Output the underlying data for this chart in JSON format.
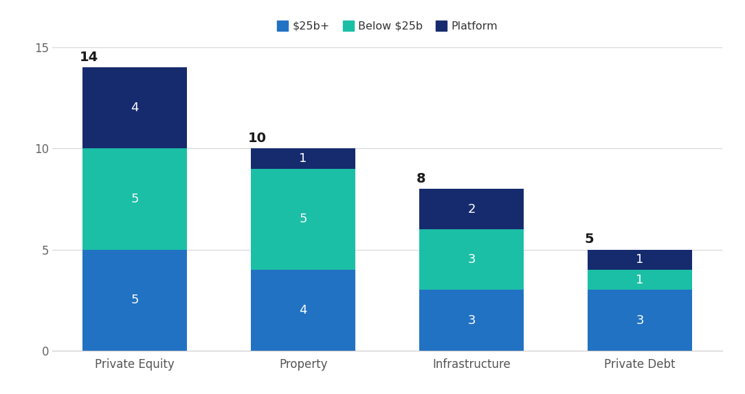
{
  "categories": [
    "Private Equity",
    "Property",
    "Infrastructure",
    "Private Debt"
  ],
  "series": {
    "$25b+": [
      5,
      4,
      3,
      3
    ],
    "Below $25b": [
      5,
      5,
      3,
      1
    ],
    "Platform": [
      4,
      1,
      2,
      1
    ]
  },
  "totals": [
    14,
    10,
    8,
    5
  ],
  "colors": {
    "$25b+": "#2272C3",
    "Below $25b": "#1BBFA6",
    "Platform": "#162B6E"
  },
  "legend_labels": [
    "$25b+",
    "Below $25b",
    "Platform"
  ],
  "ylim": [
    0,
    15
  ],
  "yticks": [
    0,
    5,
    10,
    15
  ],
  "background_color": "#FFFFFF",
  "bar_width": 0.62,
  "label_fontsize": 13,
  "total_fontsize": 14,
  "tick_fontsize": 12,
  "legend_fontsize": 11.5
}
